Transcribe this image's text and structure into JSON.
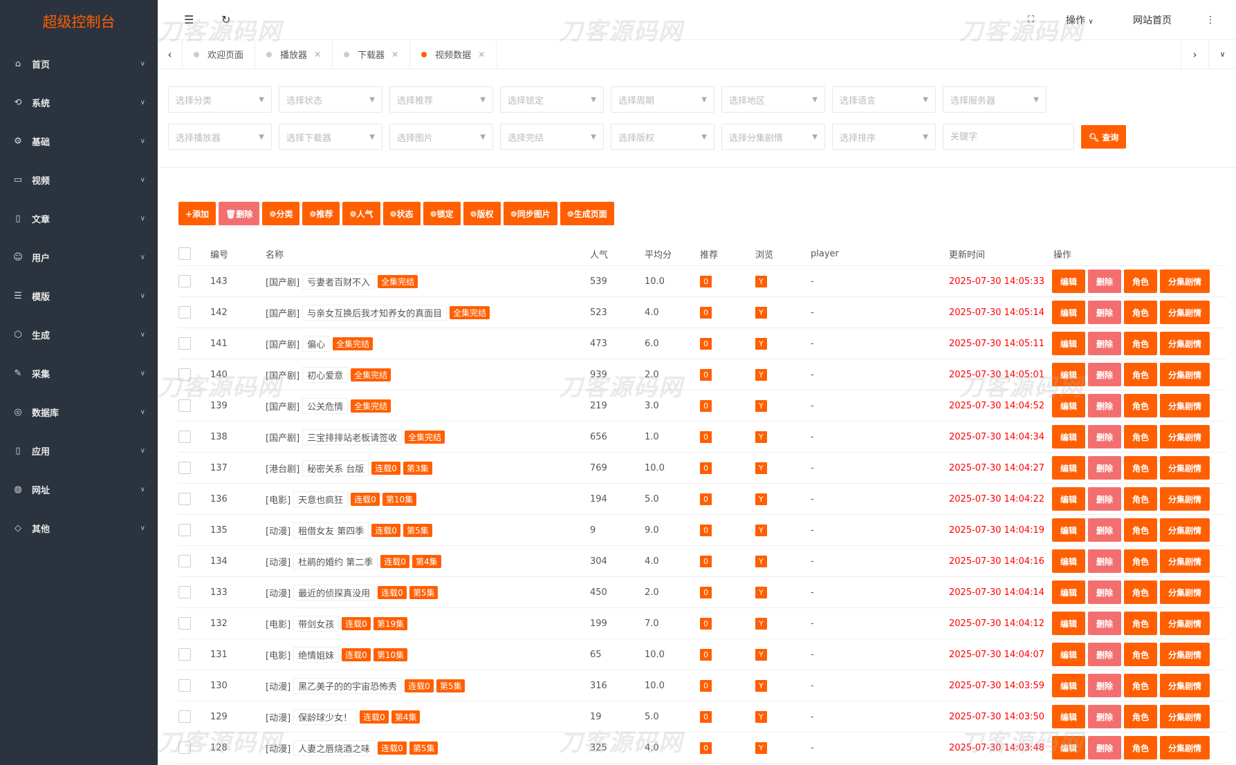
{
  "sidebar": {
    "logo": "超级控制台",
    "items": [
      {
        "label": "首页",
        "icon": "home-icon",
        "glyph": "⌂"
      },
      {
        "label": "系统",
        "icon": "system-icon",
        "glyph": "⟲"
      },
      {
        "label": "基础",
        "icon": "gear-icon",
        "glyph": "⚙"
      },
      {
        "label": "视频",
        "icon": "video-icon",
        "glyph": "▭"
      },
      {
        "label": "文章",
        "icon": "document-icon",
        "glyph": "▯"
      },
      {
        "label": "用户",
        "icon": "user-icon",
        "glyph": "☺"
      },
      {
        "label": "模版",
        "icon": "template-icon",
        "glyph": "☰"
      },
      {
        "label": "生成",
        "icon": "cube-icon",
        "glyph": "⬡"
      },
      {
        "label": "采集",
        "icon": "brush-icon",
        "glyph": "✎"
      },
      {
        "label": "数据库",
        "icon": "database-icon",
        "glyph": "◎"
      },
      {
        "label": "应用",
        "icon": "mobile-icon",
        "glyph": "▯"
      },
      {
        "label": "网址",
        "icon": "globe-icon",
        "glyph": "◍"
      },
      {
        "label": "其他",
        "icon": "tag-icon",
        "glyph": "◇"
      }
    ]
  },
  "header": {
    "operate": "操作",
    "site_home": "网站首页"
  },
  "watermark": "刀客源码网",
  "tabs": [
    {
      "label": "欢迎页面",
      "closable": false,
      "active": false
    },
    {
      "label": "播放器",
      "closable": true,
      "active": false
    },
    {
      "label": "下载器",
      "closable": true,
      "active": false
    },
    {
      "label": "视频数据",
      "closable": true,
      "active": true
    }
  ],
  "filters": {
    "row1": [
      "选择分类",
      "选择状态",
      "选择推荐",
      "选择锁定",
      "选择周期",
      "选择地区",
      "选择语言",
      "选择服务器"
    ],
    "row2": [
      "选择播放器",
      "选择下载器",
      "选择图片",
      "选择完结",
      "选择版权",
      "选择分集剧情",
      "选择排序"
    ],
    "keyword_placeholder": "关键字",
    "keyword_value": "",
    "search_label": "查询"
  },
  "toolbar": [
    "+添加",
    "🗑删除",
    "❁分类",
    "❁推荐",
    "❁人气",
    "❁状态",
    "❁锁定",
    "❁版权",
    "❁同步图片",
    "❁生成页面"
  ],
  "table": {
    "headers": [
      "编号",
      "名称",
      "人气",
      "平均分",
      "推荐",
      "浏览",
      "player",
      "更新时间",
      "操作"
    ],
    "actions": [
      "编辑",
      "删除",
      "角色",
      "分集剧情"
    ],
    "rows": [
      {
        "id": "143",
        "cat": "[国产剧]",
        "name": "亏妻者百财不入",
        "tags": [
          "全集完结"
        ],
        "hits": "539",
        "score": "10.0",
        "rec": "0",
        "view": "Y",
        "player": "-",
        "time": "2025-07-30 14:05:33"
      },
      {
        "id": "142",
        "cat": "[国产剧]",
        "name": "与亲女互换后我才知养女的真面目",
        "tags": [
          "全集完结"
        ],
        "hits": "523",
        "score": "4.0",
        "rec": "0",
        "view": "Y",
        "player": "-",
        "time": "2025-07-30 14:05:14"
      },
      {
        "id": "141",
        "cat": "[国产剧]",
        "name": "偏心",
        "tags": [
          "全集完结"
        ],
        "hits": "473",
        "score": "6.0",
        "rec": "0",
        "view": "Y",
        "player": "-",
        "time": "2025-07-30 14:05:11"
      },
      {
        "id": "140",
        "cat": "[国产剧]",
        "name": "初心爱意",
        "tags": [
          "全集完结"
        ],
        "hits": "939",
        "score": "2.0",
        "rec": "0",
        "view": "Y",
        "player": "-",
        "time": "2025-07-30 14:05:01"
      },
      {
        "id": "139",
        "cat": "[国产剧]",
        "name": "公关危情",
        "tags": [
          "全集完结"
        ],
        "hits": "219",
        "score": "3.0",
        "rec": "0",
        "view": "Y",
        "player": "-",
        "time": "2025-07-30 14:04:52"
      },
      {
        "id": "138",
        "cat": "[国产剧]",
        "name": "三宝排排站老板请签收",
        "tags": [
          "全集完结"
        ],
        "hits": "656",
        "score": "1.0",
        "rec": "0",
        "view": "Y",
        "player": "-",
        "time": "2025-07-30 14:04:34"
      },
      {
        "id": "137",
        "cat": "[港台剧]",
        "name": "秘密关系 台版",
        "tags": [
          "连载0",
          "第3集"
        ],
        "hits": "769",
        "score": "10.0",
        "rec": "0",
        "view": "Y",
        "player": "-",
        "time": "2025-07-30 14:04:27"
      },
      {
        "id": "136",
        "cat": "[电影]",
        "name": "天意也疯狂",
        "tags": [
          "连载0",
          "第10集"
        ],
        "hits": "194",
        "score": "5.0",
        "rec": "0",
        "view": "Y",
        "player": "-",
        "time": "2025-07-30 14:04:22"
      },
      {
        "id": "135",
        "cat": "[动漫]",
        "name": "租借女友 第四季",
        "tags": [
          "连载0",
          "第5集"
        ],
        "hits": "9",
        "score": "9.0",
        "rec": "0",
        "view": "Y",
        "player": "-",
        "time": "2025-07-30 14:04:19"
      },
      {
        "id": "134",
        "cat": "[动漫]",
        "name": "杜鹃的婚约 第二季",
        "tags": [
          "连载0",
          "第4集"
        ],
        "hits": "304",
        "score": "4.0",
        "rec": "0",
        "view": "Y",
        "player": "-",
        "time": "2025-07-30 14:04:16"
      },
      {
        "id": "133",
        "cat": "[动漫]",
        "name": "最近的侦探真没用",
        "tags": [
          "连载0",
          "第5集"
        ],
        "hits": "450",
        "score": "2.0",
        "rec": "0",
        "view": "Y",
        "player": "-",
        "time": "2025-07-30 14:04:14"
      },
      {
        "id": "132",
        "cat": "[电影]",
        "name": "带剑女孩",
        "tags": [
          "连载0",
          "第19集"
        ],
        "hits": "199",
        "score": "7.0",
        "rec": "0",
        "view": "Y",
        "player": "-",
        "time": "2025-07-30 14:04:12"
      },
      {
        "id": "131",
        "cat": "[电影]",
        "name": "绝情姐妹",
        "tags": [
          "连载0",
          "第10集"
        ],
        "hits": "65",
        "score": "10.0",
        "rec": "0",
        "view": "Y",
        "player": "-",
        "time": "2025-07-30 14:04:07"
      },
      {
        "id": "130",
        "cat": "[动漫]",
        "name": "黑乙美子的的宇宙恐怖秀",
        "tags": [
          "连载0",
          "第5集"
        ],
        "hits": "316",
        "score": "10.0",
        "rec": "0",
        "view": "Y",
        "player": "-",
        "time": "2025-07-30 14:03:59"
      },
      {
        "id": "129",
        "cat": "[动漫]",
        "name": "保龄球少女！",
        "tags": [
          "连载0",
          "第4集"
        ],
        "hits": "19",
        "score": "5.0",
        "rec": "0",
        "view": "Y",
        "player": "-",
        "time": "2025-07-30 14:03:50"
      },
      {
        "id": "128",
        "cat": "[动漫]",
        "name": "人妻之唇烧酒之味",
        "tags": [
          "连载0",
          "第5集"
        ],
        "hits": "325",
        "score": "4.0",
        "rec": "0",
        "view": "Y",
        "player": "-",
        "time": "2025-07-30 14:03:48"
      }
    ]
  },
  "colors": {
    "accent": "#ff5f00",
    "danger": "#f36f6f",
    "sidebar": "#2b333e",
    "time": "#ff0000"
  }
}
